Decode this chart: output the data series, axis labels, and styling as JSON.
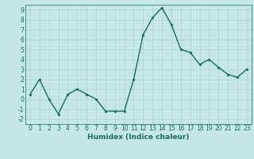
{
  "x": [
    0,
    1,
    2,
    3,
    4,
    5,
    6,
    7,
    8,
    9,
    10,
    11,
    12,
    13,
    14,
    15,
    16,
    17,
    18,
    19,
    20,
    21,
    22,
    23
  ],
  "y": [
    0.5,
    2.0,
    0.0,
    -1.5,
    0.5,
    1.0,
    0.5,
    0.0,
    -1.2,
    -1.2,
    -1.2,
    2.0,
    6.5,
    8.2,
    9.2,
    7.5,
    5.0,
    4.7,
    3.5,
    4.0,
    3.2,
    2.5,
    2.2,
    3.0
  ],
  "line_color": "#1a6b5a",
  "marker": "o",
  "marker_size": 2.0,
  "linewidth": 1.0,
  "xlabel": "Humidex (Indice chaleur)",
  "xlim": [
    -0.5,
    23.5
  ],
  "ylim": [
    -2.5,
    9.5
  ],
  "yticks": [
    -2,
    -1,
    0,
    1,
    2,
    3,
    4,
    5,
    6,
    7,
    8,
    9
  ],
  "xticks": [
    0,
    1,
    2,
    3,
    4,
    5,
    6,
    7,
    8,
    9,
    10,
    11,
    12,
    13,
    14,
    15,
    16,
    17,
    18,
    19,
    20,
    21,
    22,
    23
  ],
  "background_color": "#c5e8e5",
  "grid_color": "#aed4d0",
  "line_dark": "#1a6b5a",
  "tick_fontsize": 5.5,
  "xlabel_fontsize": 6.5
}
